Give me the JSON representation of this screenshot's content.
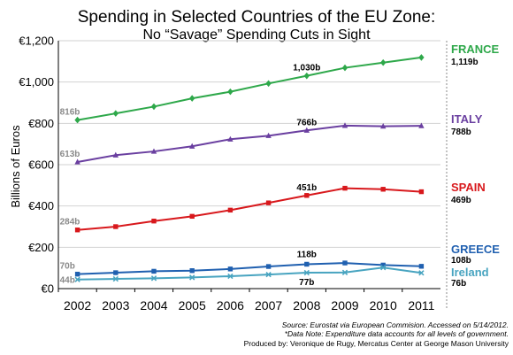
{
  "chart_data": {
    "type": "line",
    "title": "Spending in Selected Countries of the EU Zone:",
    "subtitle": "No “Savage” Spending Cuts in Sight",
    "ylabel": "Billions of Euros",
    "xlabel": "",
    "x": [
      "2002",
      "2003",
      "2004",
      "2005",
      "2006",
      "2007",
      "2008",
      "2009",
      "2010",
      "2011"
    ],
    "ylim": [
      0,
      1200
    ],
    "yticks": [
      0,
      200,
      400,
      600,
      800,
      1000,
      1200
    ],
    "ytick_labels": [
      "€0",
      "€200",
      "€400",
      "€600",
      "€800",
      "€1,000",
      "€1,200"
    ],
    "grid": true,
    "series": [
      {
        "name": "FRANCE",
        "color": "#2ea84a",
        "marker": "diamond",
        "values": [
          816,
          848,
          881,
          921,
          953,
          993,
          1030,
          1069,
          1094,
          1119
        ],
        "end_label": "1,119b",
        "point_labels": [
          {
            "index": 0,
            "text": "816b"
          },
          {
            "index": 6,
            "text": "1,030b"
          }
        ]
      },
      {
        "name": "ITALY",
        "color": "#6a3fa0",
        "marker": "triangle",
        "values": [
          613,
          646,
          664,
          689,
          723,
          740,
          766,
          789,
          786,
          788
        ],
        "end_label": "788b",
        "point_labels": [
          {
            "index": 0,
            "text": "613b"
          },
          {
            "index": 6,
            "text": "766b"
          }
        ]
      },
      {
        "name": "SPAIN",
        "color": "#d8181c",
        "marker": "square",
        "values": [
          284,
          300,
          327,
          350,
          380,
          415,
          451,
          486,
          481,
          469
        ],
        "end_label": "469b",
        "point_labels": [
          {
            "index": 0,
            "text": "284b"
          },
          {
            "index": 6,
            "text": "451b"
          }
        ]
      },
      {
        "name": "GREECE",
        "color": "#2060b0",
        "marker": "square",
        "values": [
          70,
          77,
          84,
          87,
          95,
          107,
          118,
          124,
          114,
          108
        ],
        "end_label": "108b",
        "point_labels": [
          {
            "index": 0,
            "text": "70b"
          },
          {
            "index": 6,
            "text": "118b"
          }
        ]
      },
      {
        "name": "Ireland",
        "color": "#48a4c0",
        "marker": "x",
        "values": [
          44,
          47,
          50,
          54,
          60,
          68,
          77,
          78,
          102,
          76
        ],
        "end_label": "76b",
        "point_labels": [
          {
            "index": 0,
            "text": "44b"
          },
          {
            "index": 6,
            "text": "77b"
          }
        ]
      }
    ]
  },
  "footer": {
    "source": "Source: Eurostat via European Commision. Accessed on 5/14/2012.",
    "note": "*Data Note: Expenditure data accounts for all levels of government.",
    "credit": "Produced by: Veronique de Rugy, Mercatus Center at George Mason University"
  }
}
